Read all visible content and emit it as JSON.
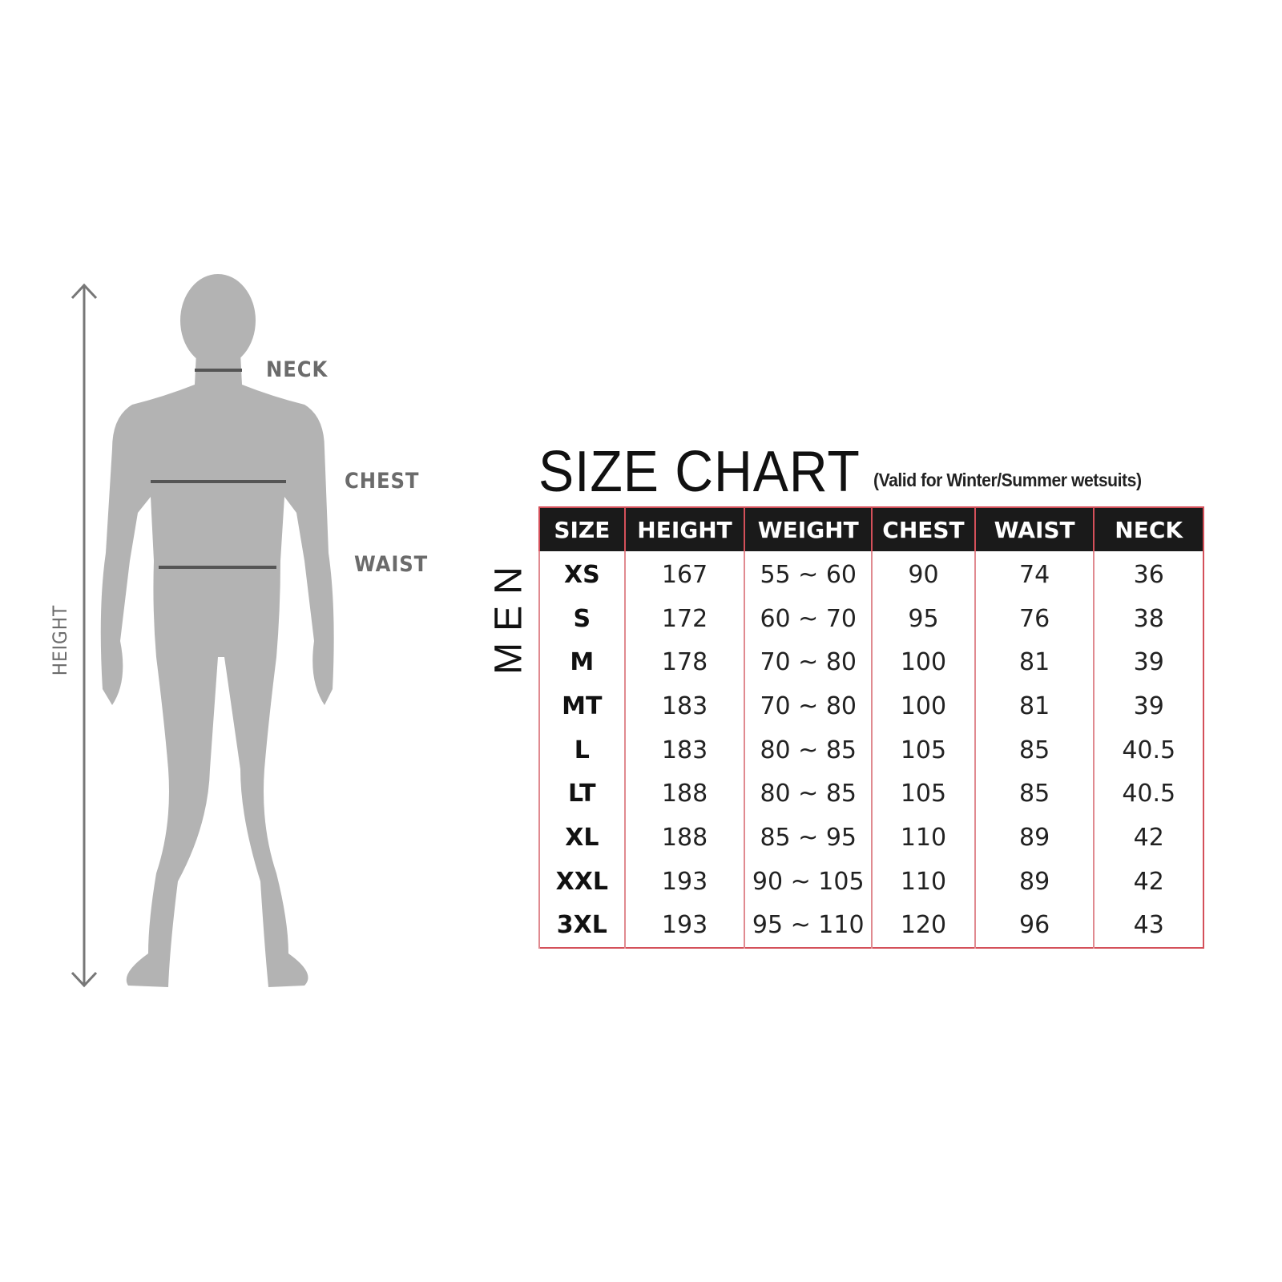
{
  "figure": {
    "labels": {
      "height": "HEIGHT",
      "neck": "NECK",
      "chest": "CHEST",
      "waist": "WAIST"
    },
    "silhouette_color": "#b3b3b3",
    "line_color": "#555555"
  },
  "chart": {
    "title": "SIZE CHART",
    "subtitle": "(Valid for Winter/Summer wetsuits)",
    "group_label": "MEN",
    "border_color": "#d4505a",
    "header_bg": "#1a1a1a",
    "columns": [
      "SIZE",
      "HEIGHT",
      "WEIGHT",
      "CHEST",
      "WAIST",
      "NECK"
    ],
    "rows": [
      [
        "XS",
        "167",
        "55 ~ 60",
        "90",
        "74",
        "36"
      ],
      [
        "S",
        "172",
        "60 ~ 70",
        "95",
        "76",
        "38"
      ],
      [
        "M",
        "178",
        "70 ~ 80",
        "100",
        "81",
        "39"
      ],
      [
        "MT",
        "183",
        "70 ~ 80",
        "100",
        "81",
        "39"
      ],
      [
        "L",
        "183",
        "80 ~ 85",
        "105",
        "85",
        "40.5"
      ],
      [
        "LT",
        "188",
        "80 ~ 85",
        "105",
        "85",
        "40.5"
      ],
      [
        "XL",
        "188",
        "85 ~ 95",
        "110",
        "89",
        "42"
      ],
      [
        "XXL",
        "193",
        "90 ~ 105",
        "110",
        "89",
        "42"
      ],
      [
        "3XL",
        "193",
        "95 ~ 110",
        "120",
        "96",
        "43"
      ]
    ]
  }
}
